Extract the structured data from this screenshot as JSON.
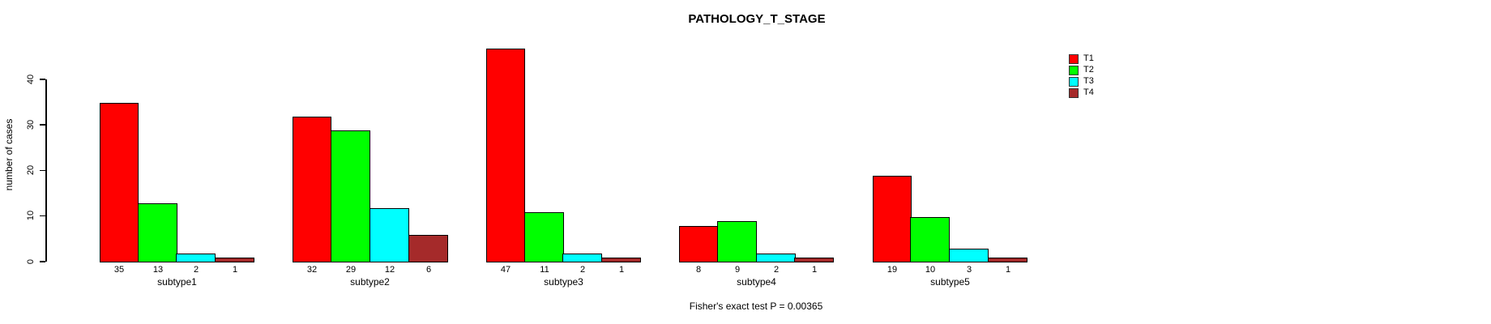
{
  "chart_data": {
    "type": "bar",
    "title": "PATHOLOGY_T_STAGE",
    "ylabel": "number of cases",
    "xlabel": "",
    "annotation": "Fisher's exact test P = 0.00365",
    "categories": [
      "subtype1",
      "subtype2",
      "subtype3",
      "subtype4",
      "subtype5"
    ],
    "series": [
      {
        "name": "T1",
        "color": "#FF0000",
        "values": [
          35,
          32,
          47,
          8,
          19
        ]
      },
      {
        "name": "T2",
        "color": "#00FF00",
        "values": [
          13,
          29,
          11,
          9,
          10
        ]
      },
      {
        "name": "T3",
        "color": "#00FFFF",
        "values": [
          2,
          12,
          2,
          2,
          3
        ]
      },
      {
        "name": "T4",
        "color": "#A52A2A",
        "values": [
          1,
          6,
          1,
          1,
          1
        ]
      }
    ],
    "yticks": [
      0,
      10,
      20,
      30,
      40
    ],
    "ylim": [
      0,
      47
    ],
    "bar_value_labels": true,
    "grid": false,
    "legend_position": "top-right"
  },
  "colors": {
    "background": "#FFFFFF",
    "bar_border": "#000000",
    "text": "#000000"
  }
}
